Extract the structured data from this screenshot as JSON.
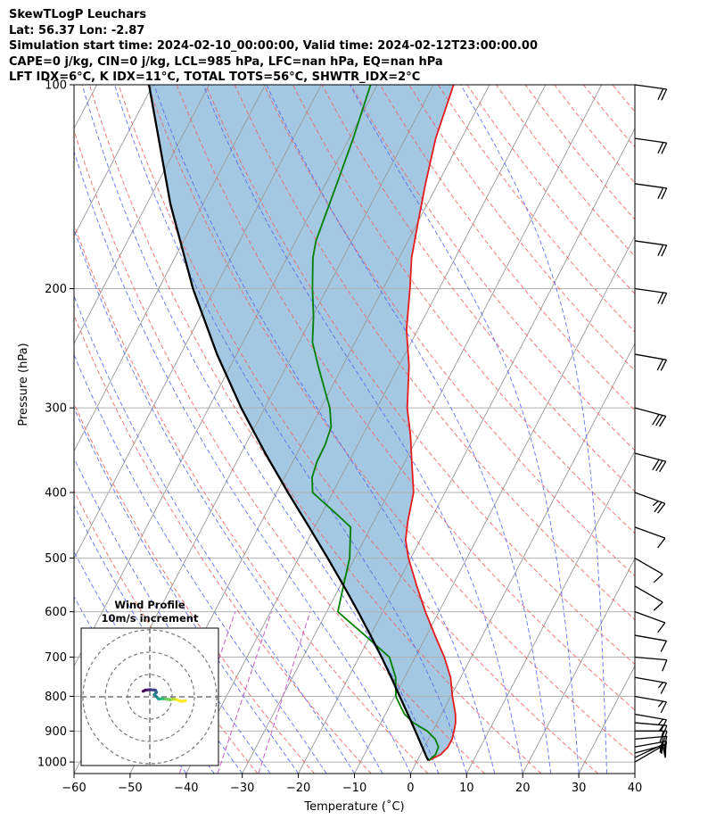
{
  "header": {
    "title": "SkewTLogP Leuchars",
    "location": "Lat: 56.37   Lon: -2.87",
    "times": "Simulation start time: 2024-02-10_00:00:00, Valid time: 2024-02-12T23:00:00.00",
    "params": "CAPE=0 j/kg, CIN=0 j/kg, LCL=985 hPa, LFC=nan hPa, EQ=nan hPa",
    "indices": "LFT IDX=6°C, K IDX=11°C, TOTAL TOTS=56°C, SHWTR_IDX=2°C"
  },
  "colors": {
    "temperature": "#e41a1c",
    "dewpoint": "#008000",
    "parcel": "#000000",
    "fill": "#a4c8e1",
    "isotherm": "#999999",
    "dry_adiabat": "#f06060",
    "moist_adiabat": "#4f5ff0",
    "mixing_ratio": "#c050c0"
  },
  "chart_data": {
    "type": "line",
    "title": "SkewTLogP Leuchars",
    "xlabel": "Temperature (˚C)",
    "ylabel": "Pressure (hPa)",
    "xlim": [
      -60,
      40
    ],
    "ylim": [
      1040,
      100
    ],
    "x_ticks": [
      -60,
      -50,
      -40,
      -30,
      -20,
      -10,
      0,
      10,
      20,
      30,
      40
    ],
    "x_tick_labels": [
      "−60",
      "−50",
      "−40",
      "−30",
      "−20",
      "−10",
      "0",
      "10",
      "20",
      "30",
      "40"
    ],
    "y_ticks": [
      1000,
      900,
      800,
      700,
      600,
      500,
      400,
      300,
      200,
      100
    ],
    "y_tick_labels": [
      "1000",
      "900",
      "800",
      "700",
      "600",
      "500",
      "400",
      "300",
      "200",
      "100"
    ],
    "skew_deg_per_decade": 63,
    "series": [
      {
        "name": "Temperature",
        "color": "#e41a1c",
        "p": [
          995,
          975,
          950,
          925,
          900,
          875,
          850,
          800,
          750,
          700,
          650,
          600,
          550,
          500,
          470,
          440,
          400,
          360,
          330,
          300,
          260,
          230,
          200,
          180,
          160,
          140,
          120,
          100
        ],
        "t": [
          2.0,
          3.6,
          4.2,
          4.2,
          3.8,
          3.3,
          2.5,
          0.3,
          -1.8,
          -4.8,
          -8.5,
          -12.4,
          -16.3,
          -20.4,
          -22.6,
          -24.0,
          -25.6,
          -28.8,
          -31.4,
          -34.6,
          -38.2,
          -42.0,
          -45.2,
          -47.8,
          -49.9,
          -52.2,
          -54.6,
          -56.4
        ]
      },
      {
        "name": "Dewpoint",
        "color": "#008000",
        "p": [
          995,
          975,
          950,
          925,
          900,
          875,
          850,
          800,
          750,
          700,
          650,
          600,
          550,
          500,
          450,
          430,
          400,
          380,
          360,
          340,
          320,
          300,
          280,
          260,
          240,
          220,
          200,
          180,
          170,
          160,
          140,
          120,
          100
        ],
        "t": [
          2.0,
          2.7,
          2.5,
          1.2,
          -1.0,
          -4.2,
          -6.6,
          -9.8,
          -11.6,
          -14.6,
          -21.0,
          -28.0,
          -29.4,
          -30.9,
          -33.6,
          -37.4,
          -43.6,
          -45.1,
          -45.7,
          -45.8,
          -46.4,
          -48.4,
          -51.3,
          -54.4,
          -57.6,
          -59.8,
          -62.6,
          -65.4,
          -66.4,
          -66.9,
          -68.0,
          -69.3,
          -71.2
        ]
      },
      {
        "name": "Parcel",
        "color": "#000000",
        "p": [
          995,
          985,
          950,
          900,
          850,
          800,
          750,
          700,
          650,
          600,
          550,
          500,
          450,
          400,
          350,
          300,
          250,
          200,
          150,
          100
        ],
        "t": [
          2.0,
          1.4,
          -0.4,
          -3.1,
          -6.0,
          -9.1,
          -12.4,
          -16.0,
          -20.0,
          -24.4,
          -29.3,
          -34.8,
          -41.0,
          -48.0,
          -55.7,
          -64.2,
          -73.5,
          -83.9,
          -95.8,
          -110.7
        ]
      }
    ],
    "fill_between": [
      "Parcel",
      "Temperature"
    ],
    "wind_barbs": {
      "p": [
        1000,
        985,
        970,
        950,
        925,
        900,
        875,
        850,
        800,
        750,
        700,
        650,
        600,
        550,
        500,
        450,
        400,
        350,
        300,
        250,
        200,
        170,
        140,
        120,
        100
      ],
      "speed_kt": [
        10,
        14,
        16,
        18,
        20,
        18,
        14,
        15,
        14,
        15,
        12,
        10,
        8,
        9,
        10,
        12,
        25,
        30,
        30,
        20,
        20,
        18,
        18,
        18,
        20
      ],
      "direction_deg": [
        240,
        245,
        255,
        260,
        265,
        270,
        275,
        280,
        280,
        280,
        275,
        280,
        290,
        300,
        300,
        290,
        290,
        285,
        285,
        280,
        278,
        278,
        278,
        278,
        278
      ]
    },
    "inset": {
      "title": "Wind Profile",
      "subtitle": "10m/s increment",
      "ring_interval_ms": 10,
      "rings": 3,
      "u_ms": [
        16.0,
        14.0,
        11.0,
        9.0,
        6.0,
        4.0,
        3.0,
        2.0,
        3.0,
        2.5,
        0.0,
        -2.0,
        -3.0
      ],
      "v_ms": [
        -1.8,
        -2.0,
        -1.0,
        -1.3,
        -0.8,
        -1.0,
        0.0,
        1.0,
        2.0,
        3.0,
        3.2,
        3.0,
        2.5
      ]
    }
  }
}
